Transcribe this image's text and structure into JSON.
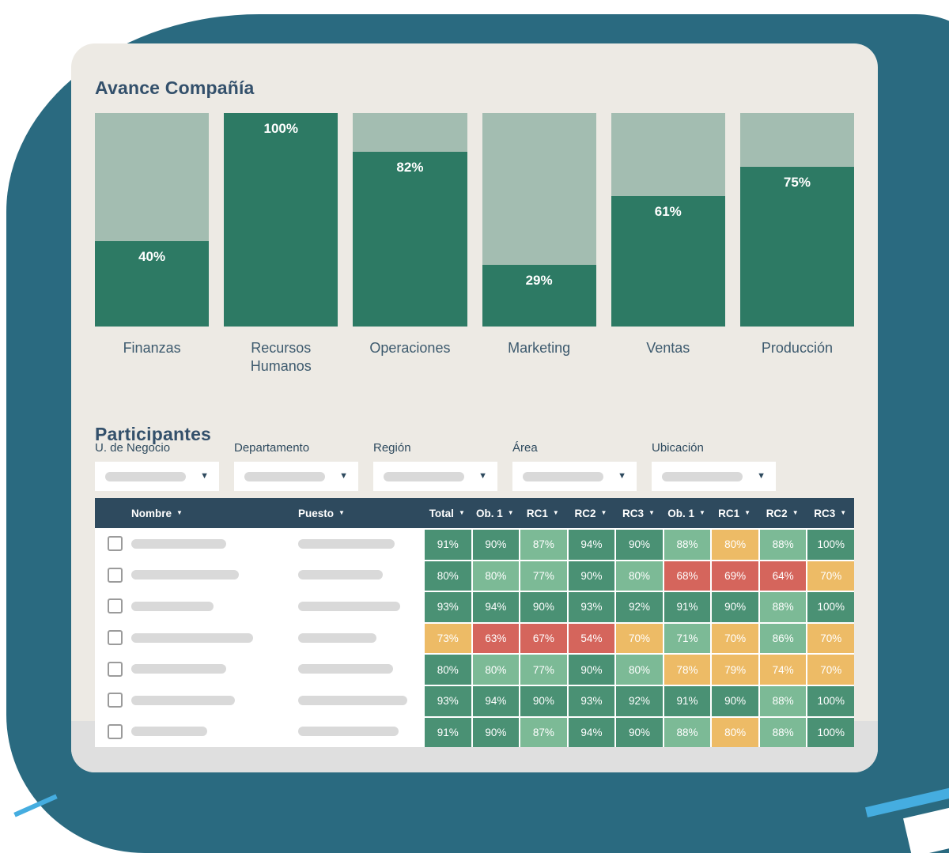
{
  "page": {
    "colors": {
      "blob_teal": "#2a6a80",
      "accent_blue": "#45ade0",
      "card_bg": "#edeae4",
      "card_footer_gray": "#dfdfdf",
      "navy": "#2e4a5e",
      "title_navy": "#33506b",
      "axis_label": "#3d5a6e"
    }
  },
  "progress_chart": {
    "title": "Avance Compañía",
    "colors": {
      "fill": "#2d7a64",
      "track": "#a3bdb1"
    },
    "bars": [
      {
        "label": "Finanzas",
        "value": 40,
        "value_label": "40%"
      },
      {
        "label": "Recursos Humanos",
        "value": 100,
        "value_label": "100%"
      },
      {
        "label": "Operaciones",
        "value": 82,
        "value_label": "82%"
      },
      {
        "label": "Marketing",
        "value": 29,
        "value_label": "29%"
      },
      {
        "label": "Ventas",
        "value": 61,
        "value_label": "61%"
      },
      {
        "label": "Producción",
        "value": 75,
        "value_label": "75%"
      }
    ]
  },
  "chart_data": {
    "type": "bar",
    "title": "Avance Compañía",
    "categories": [
      "Finanzas",
      "Recursos Humanos",
      "Operaciones",
      "Marketing",
      "Ventas",
      "Producción"
    ],
    "values": [
      40,
      100,
      82,
      29,
      61,
      75
    ],
    "data_labels": [
      "40%",
      "100%",
      "82%",
      "29%",
      "61%",
      "75%"
    ],
    "unit": "%",
    "ylim": [
      0,
      100
    ],
    "grid": false,
    "legend": false,
    "xlabel": "",
    "ylabel": ""
  },
  "participants": {
    "title": "Participantes",
    "sort_icon": "▼",
    "filters": [
      {
        "label": "U. de Negocio"
      },
      {
        "label": "Departamento"
      },
      {
        "label": "Región"
      },
      {
        "label": "Área"
      },
      {
        "label": "Ubicación"
      }
    ],
    "table": {
      "columns": [
        "Nombre",
        "Puesto",
        "Total",
        "Ob. 1",
        "RC1",
        "RC2",
        "RC3",
        "Ob. 1",
        "RC1",
        "RC2",
        "RC3"
      ],
      "color_map": {
        "g": "#4a9174",
        "l": "#7cba96",
        "o": "#edbb66",
        "r": "#d5655c"
      },
      "rows": [
        {
          "name_bar": 120,
          "role_bar": 122,
          "values": [
            "91%",
            "90%",
            "87%",
            "94%",
            "90%",
            "88%",
            "80%",
            "88%",
            "100%"
          ],
          "colors": [
            "g",
            "g",
            "l",
            "g",
            "g",
            "l",
            "o",
            "l",
            "g"
          ]
        },
        {
          "name_bar": 136,
          "role_bar": 107,
          "values": [
            "80%",
            "80%",
            "77%",
            "90%",
            "80%",
            "68%",
            "69%",
            "64%",
            "70%"
          ],
          "colors": [
            "g",
            "l",
            "l",
            "g",
            "l",
            "r",
            "r",
            "r",
            "o"
          ]
        },
        {
          "name_bar": 104,
          "role_bar": 129,
          "values": [
            "93%",
            "94%",
            "90%",
            "93%",
            "92%",
            "91%",
            "90%",
            "88%",
            "100%"
          ],
          "colors": [
            "g",
            "g",
            "g",
            "g",
            "g",
            "g",
            "g",
            "l",
            "g"
          ]
        },
        {
          "name_bar": 154,
          "role_bar": 99,
          "values": [
            "73%",
            "63%",
            "67%",
            "54%",
            "70%",
            "71%",
            "70%",
            "86%",
            "70%"
          ],
          "colors": [
            "o",
            "r",
            "r",
            "r",
            "o",
            "l",
            "o",
            "l",
            "o"
          ]
        },
        {
          "name_bar": 120,
          "role_bar": 120,
          "values": [
            "80%",
            "80%",
            "77%",
            "90%",
            "80%",
            "78%",
            "79%",
            "74%",
            "70%"
          ],
          "colors": [
            "g",
            "l",
            "l",
            "g",
            "l",
            "o",
            "o",
            "o",
            "o"
          ]
        },
        {
          "name_bar": 131,
          "role_bar": 138,
          "values": [
            "93%",
            "94%",
            "90%",
            "93%",
            "92%",
            "91%",
            "90%",
            "88%",
            "100%"
          ],
          "colors": [
            "g",
            "g",
            "g",
            "g",
            "g",
            "g",
            "g",
            "l",
            "g"
          ]
        },
        {
          "name_bar": 96,
          "role_bar": 127,
          "values": [
            "91%",
            "90%",
            "87%",
            "94%",
            "90%",
            "88%",
            "80%",
            "88%",
            "100%"
          ],
          "colors": [
            "g",
            "g",
            "l",
            "g",
            "g",
            "l",
            "o",
            "l",
            "g"
          ]
        }
      ]
    }
  }
}
